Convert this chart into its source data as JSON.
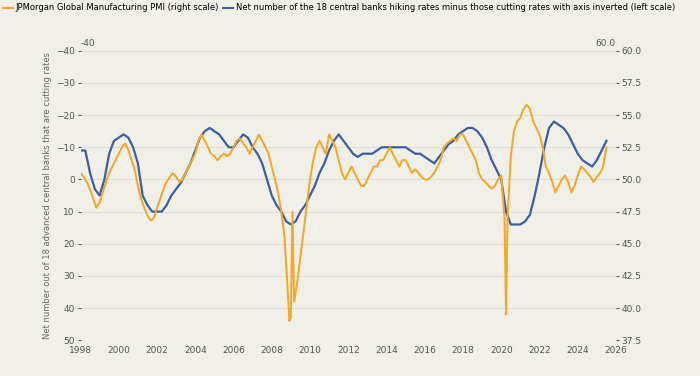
{
  "legend_orange": "JPMorgan Global Manufacturing PMI (right scale)",
  "legend_blue": "Net number of the 18 central banks hiking rates minus those cutting rates with axis inverted (left scale)",
  "left_ylabel": "Net number out of 18 advanced central banks that are cutting rates",
  "left_ylim": [
    50,
    -40
  ],
  "left_yticks": [
    50,
    40,
    30,
    20,
    10,
    0,
    -10,
    -20,
    -30,
    -40
  ],
  "right_ylim": [
    37.5,
    60.0
  ],
  "right_yticks": [
    37.5,
    40.0,
    42.5,
    45.0,
    47.5,
    50.0,
    52.5,
    55.0,
    57.5,
    60.0
  ],
  "top_left_label": "-40",
  "top_right_label": "60.0",
  "xlim": [
    1998,
    2026
  ],
  "xticks": [
    1998,
    2000,
    2002,
    2004,
    2006,
    2008,
    2010,
    2012,
    2014,
    2016,
    2018,
    2020,
    2022,
    2024,
    2026
  ],
  "orange_color": "#F5A623",
  "blue_color": "#3B5FA0",
  "background_color": "#F0EFE8",
  "grid_color": "#D8D8D0",
  "orange_lw": 1.4,
  "blue_lw": 1.6,
  "pmi_data": [
    [
      1998.0,
      50.5
    ],
    [
      1998.17,
      50.2
    ],
    [
      1998.33,
      49.8
    ],
    [
      1998.5,
      49.2
    ],
    [
      1998.67,
      48.5
    ],
    [
      1998.83,
      47.8
    ],
    [
      1999.0,
      48.2
    ],
    [
      1999.17,
      49.0
    ],
    [
      1999.33,
      49.8
    ],
    [
      1999.5,
      50.5
    ],
    [
      1999.67,
      51.0
    ],
    [
      1999.83,
      51.5
    ],
    [
      2000.0,
      52.0
    ],
    [
      2000.17,
      52.5
    ],
    [
      2000.33,
      52.8
    ],
    [
      2000.5,
      52.3
    ],
    [
      2000.67,
      51.5
    ],
    [
      2000.83,
      50.8
    ],
    [
      2001.0,
      49.5
    ],
    [
      2001.17,
      48.5
    ],
    [
      2001.33,
      47.8
    ],
    [
      2001.5,
      47.2
    ],
    [
      2001.67,
      46.8
    ],
    [
      2001.83,
      47.0
    ],
    [
      2002.0,
      47.8
    ],
    [
      2002.17,
      48.5
    ],
    [
      2002.33,
      49.2
    ],
    [
      2002.5,
      49.8
    ],
    [
      2002.67,
      50.2
    ],
    [
      2002.83,
      50.5
    ],
    [
      2003.0,
      50.2
    ],
    [
      2003.17,
      49.8
    ],
    [
      2003.33,
      50.0
    ],
    [
      2003.5,
      50.5
    ],
    [
      2003.67,
      51.0
    ],
    [
      2003.83,
      51.5
    ],
    [
      2004.0,
      52.0
    ],
    [
      2004.17,
      53.0
    ],
    [
      2004.33,
      53.5
    ],
    [
      2004.5,
      53.0
    ],
    [
      2004.67,
      52.5
    ],
    [
      2004.83,
      52.0
    ],
    [
      2005.0,
      51.8
    ],
    [
      2005.17,
      51.5
    ],
    [
      2005.33,
      51.8
    ],
    [
      2005.5,
      52.0
    ],
    [
      2005.67,
      51.8
    ],
    [
      2005.83,
      52.0
    ],
    [
      2006.0,
      52.5
    ],
    [
      2006.17,
      53.0
    ],
    [
      2006.33,
      53.2
    ],
    [
      2006.5,
      52.8
    ],
    [
      2006.67,
      52.5
    ],
    [
      2006.83,
      52.0
    ],
    [
      2007.0,
      52.5
    ],
    [
      2007.17,
      53.0
    ],
    [
      2007.33,
      53.5
    ],
    [
      2007.5,
      53.0
    ],
    [
      2007.67,
      52.5
    ],
    [
      2007.83,
      52.0
    ],
    [
      2008.0,
      51.0
    ],
    [
      2008.17,
      50.0
    ],
    [
      2008.33,
      49.0
    ],
    [
      2008.5,
      47.5
    ],
    [
      2008.67,
      45.5
    ],
    [
      2008.75,
      43.5
    ],
    [
      2008.83,
      41.5
    ],
    [
      2008.92,
      39.0
    ],
    [
      2009.0,
      39.3
    ],
    [
      2009.08,
      47.5
    ],
    [
      2009.17,
      40.5
    ],
    [
      2009.33,
      42.0
    ],
    [
      2009.5,
      44.0
    ],
    [
      2009.67,
      46.0
    ],
    [
      2009.83,
      48.0
    ],
    [
      2010.0,
      50.0
    ],
    [
      2010.17,
      51.5
    ],
    [
      2010.33,
      52.5
    ],
    [
      2010.5,
      53.0
    ],
    [
      2010.67,
      52.5
    ],
    [
      2010.83,
      52.0
    ],
    [
      2011.0,
      53.5
    ],
    [
      2011.17,
      53.0
    ],
    [
      2011.33,
      52.5
    ],
    [
      2011.5,
      51.5
    ],
    [
      2011.67,
      50.5
    ],
    [
      2011.83,
      50.0
    ],
    [
      2012.0,
      50.5
    ],
    [
      2012.17,
      51.0
    ],
    [
      2012.33,
      50.5
    ],
    [
      2012.5,
      50.0
    ],
    [
      2012.67,
      49.5
    ],
    [
      2012.83,
      49.5
    ],
    [
      2013.0,
      50.0
    ],
    [
      2013.17,
      50.5
    ],
    [
      2013.33,
      51.0
    ],
    [
      2013.5,
      51.0
    ],
    [
      2013.67,
      51.5
    ],
    [
      2013.83,
      51.5
    ],
    [
      2014.0,
      52.0
    ],
    [
      2014.17,
      52.5
    ],
    [
      2014.33,
      52.0
    ],
    [
      2014.5,
      51.5
    ],
    [
      2014.67,
      51.0
    ],
    [
      2014.83,
      51.5
    ],
    [
      2015.0,
      51.5
    ],
    [
      2015.17,
      51.0
    ],
    [
      2015.33,
      50.5
    ],
    [
      2015.5,
      50.8
    ],
    [
      2015.67,
      50.5
    ],
    [
      2015.83,
      50.2
    ],
    [
      2016.0,
      50.0
    ],
    [
      2016.17,
      50.0
    ],
    [
      2016.33,
      50.2
    ],
    [
      2016.5,
      50.5
    ],
    [
      2016.67,
      51.0
    ],
    [
      2016.83,
      51.5
    ],
    [
      2017.0,
      52.5
    ],
    [
      2017.17,
      52.8
    ],
    [
      2017.33,
      53.0
    ],
    [
      2017.5,
      53.2
    ],
    [
      2017.67,
      53.0
    ],
    [
      2017.83,
      53.5
    ],
    [
      2018.0,
      53.5
    ],
    [
      2018.17,
      53.0
    ],
    [
      2018.33,
      52.5
    ],
    [
      2018.5,
      52.0
    ],
    [
      2018.67,
      51.5
    ],
    [
      2018.83,
      50.5
    ],
    [
      2019.0,
      50.0
    ],
    [
      2019.17,
      49.8
    ],
    [
      2019.33,
      49.5
    ],
    [
      2019.5,
      49.3
    ],
    [
      2019.67,
      49.5
    ],
    [
      2019.83,
      50.0
    ],
    [
      2020.0,
      50.3
    ],
    [
      2020.17,
      47.0
    ],
    [
      2020.25,
      39.5
    ],
    [
      2020.33,
      47.0
    ],
    [
      2020.5,
      51.8
    ],
    [
      2020.67,
      53.8
    ],
    [
      2020.83,
      54.5
    ],
    [
      2021.0,
      54.8
    ],
    [
      2021.17,
      55.5
    ],
    [
      2021.33,
      55.8
    ],
    [
      2021.5,
      55.5
    ],
    [
      2021.67,
      54.5
    ],
    [
      2021.83,
      54.0
    ],
    [
      2022.0,
      53.5
    ],
    [
      2022.17,
      52.5
    ],
    [
      2022.33,
      51.0
    ],
    [
      2022.5,
      50.5
    ],
    [
      2022.67,
      49.8
    ],
    [
      2022.83,
      49.0
    ],
    [
      2023.0,
      49.5
    ],
    [
      2023.17,
      50.0
    ],
    [
      2023.33,
      50.3
    ],
    [
      2023.5,
      49.8
    ],
    [
      2023.67,
      49.0
    ],
    [
      2023.83,
      49.5
    ],
    [
      2024.0,
      50.3
    ],
    [
      2024.17,
      51.0
    ],
    [
      2024.33,
      50.8
    ],
    [
      2024.5,
      50.5
    ],
    [
      2024.67,
      50.2
    ],
    [
      2024.83,
      49.8
    ],
    [
      2025.0,
      50.2
    ],
    [
      2025.17,
      50.5
    ],
    [
      2025.33,
      51.0
    ],
    [
      2025.5,
      52.5
    ]
  ],
  "cb_data": [
    [
      1998.0,
      -9
    ],
    [
      1998.25,
      -9
    ],
    [
      1998.5,
      -2
    ],
    [
      1998.75,
      3
    ],
    [
      1999.0,
      5
    ],
    [
      1999.25,
      0
    ],
    [
      1999.5,
      -8
    ],
    [
      1999.75,
      -12
    ],
    [
      2000.0,
      -13
    ],
    [
      2000.25,
      -14
    ],
    [
      2000.5,
      -13
    ],
    [
      2000.75,
      -10
    ],
    [
      2001.0,
      -5
    ],
    [
      2001.25,
      5
    ],
    [
      2001.5,
      8
    ],
    [
      2001.75,
      10
    ],
    [
      2002.0,
      10
    ],
    [
      2002.25,
      10
    ],
    [
      2002.5,
      8
    ],
    [
      2002.75,
      5
    ],
    [
      2003.0,
      3
    ],
    [
      2003.25,
      1
    ],
    [
      2003.5,
      -2
    ],
    [
      2003.75,
      -5
    ],
    [
      2004.0,
      -9
    ],
    [
      2004.25,
      -13
    ],
    [
      2004.5,
      -15
    ],
    [
      2004.75,
      -16
    ],
    [
      2005.0,
      -15
    ],
    [
      2005.25,
      -14
    ],
    [
      2005.5,
      -12
    ],
    [
      2005.75,
      -10
    ],
    [
      2006.0,
      -10
    ],
    [
      2006.25,
      -12
    ],
    [
      2006.5,
      -14
    ],
    [
      2006.75,
      -13
    ],
    [
      2007.0,
      -10
    ],
    [
      2007.25,
      -8
    ],
    [
      2007.5,
      -5
    ],
    [
      2007.75,
      0
    ],
    [
      2008.0,
      5
    ],
    [
      2008.25,
      8
    ],
    [
      2008.5,
      10
    ],
    [
      2008.75,
      13
    ],
    [
      2009.0,
      14
    ],
    [
      2009.25,
      13
    ],
    [
      2009.5,
      10
    ],
    [
      2009.75,
      8
    ],
    [
      2010.0,
      5
    ],
    [
      2010.25,
      2
    ],
    [
      2010.5,
      -2
    ],
    [
      2010.75,
      -5
    ],
    [
      2011.0,
      -9
    ],
    [
      2011.25,
      -12
    ],
    [
      2011.5,
      -14
    ],
    [
      2011.75,
      -12
    ],
    [
      2012.0,
      -10
    ],
    [
      2012.25,
      -8
    ],
    [
      2012.5,
      -7
    ],
    [
      2012.75,
      -8
    ],
    [
      2013.0,
      -8
    ],
    [
      2013.25,
      -8
    ],
    [
      2013.5,
      -9
    ],
    [
      2013.75,
      -10
    ],
    [
      2014.0,
      -10
    ],
    [
      2014.25,
      -10
    ],
    [
      2014.5,
      -10
    ],
    [
      2014.75,
      -10
    ],
    [
      2015.0,
      -10
    ],
    [
      2015.25,
      -9
    ],
    [
      2015.5,
      -8
    ],
    [
      2015.75,
      -8
    ],
    [
      2016.0,
      -7
    ],
    [
      2016.25,
      -6
    ],
    [
      2016.5,
      -5
    ],
    [
      2016.75,
      -7
    ],
    [
      2017.0,
      -9
    ],
    [
      2017.25,
      -11
    ],
    [
      2017.5,
      -12
    ],
    [
      2017.75,
      -14
    ],
    [
      2018.0,
      -15
    ],
    [
      2018.25,
      -16
    ],
    [
      2018.5,
      -16
    ],
    [
      2018.75,
      -15
    ],
    [
      2019.0,
      -13
    ],
    [
      2019.25,
      -10
    ],
    [
      2019.5,
      -6
    ],
    [
      2019.75,
      -3
    ],
    [
      2020.0,
      0
    ],
    [
      2020.25,
      10
    ],
    [
      2020.5,
      14
    ],
    [
      2020.75,
      14
    ],
    [
      2021.0,
      14
    ],
    [
      2021.25,
      13
    ],
    [
      2021.5,
      11
    ],
    [
      2021.75,
      5
    ],
    [
      2022.0,
      -2
    ],
    [
      2022.25,
      -10
    ],
    [
      2022.5,
      -16
    ],
    [
      2022.75,
      -18
    ],
    [
      2023.0,
      -17
    ],
    [
      2023.25,
      -16
    ],
    [
      2023.5,
      -14
    ],
    [
      2023.75,
      -11
    ],
    [
      2024.0,
      -8
    ],
    [
      2024.25,
      -6
    ],
    [
      2024.5,
      -5
    ],
    [
      2024.75,
      -4
    ],
    [
      2025.0,
      -6
    ],
    [
      2025.25,
      -9
    ],
    [
      2025.5,
      -12
    ]
  ]
}
